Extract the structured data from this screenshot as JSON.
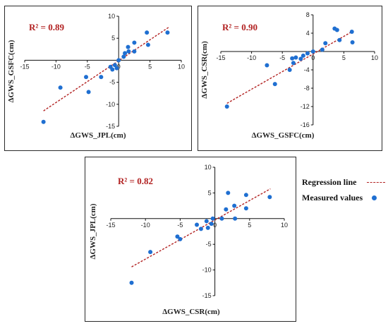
{
  "legend": {
    "regression_label": "Regression line",
    "measured_label": "Measured values"
  },
  "colors": {
    "points": "#1f6fd1",
    "regression": "#b22222",
    "r2_text": "#b22222",
    "axis": "#111111"
  },
  "chart_data": [
    {
      "type": "scatter",
      "title": "",
      "r2_label": "R² = 0.89",
      "xlabel": "ΔGWS_JPL(cm)",
      "ylabel": "ΔGWS_GSFC(cm)",
      "xlim": [
        -15,
        10
      ],
      "ylim": [
        -15,
        10
      ],
      "xticks": [
        -15,
        -10,
        -5,
        0,
        5,
        10
      ],
      "yticks": [
        -15,
        -10,
        -5,
        0,
        5,
        10
      ],
      "regression": {
        "x": [
          -12,
          8
        ],
        "y": [
          -11.5,
          7.5
        ]
      },
      "points": [
        {
          "x": -12.0,
          "y": -14.0
        },
        {
          "x": -9.3,
          "y": -6.2
        },
        {
          "x": -5.2,
          "y": -3.8
        },
        {
          "x": -4.8,
          "y": -7.2
        },
        {
          "x": -2.8,
          "y": -3.8
        },
        {
          "x": -1.3,
          "y": -1.5
        },
        {
          "x": -1.0,
          "y": -2.1
        },
        {
          "x": -0.6,
          "y": -1.1
        },
        {
          "x": -0.3,
          "y": -1.8
        },
        {
          "x": 0.0,
          "y": 0.0
        },
        {
          "x": 0.8,
          "y": 0.8
        },
        {
          "x": 1.0,
          "y": 1.6
        },
        {
          "x": 1.5,
          "y": 3.0
        },
        {
          "x": 1.6,
          "y": 2.0
        },
        {
          "x": 2.5,
          "y": 4.0
        },
        {
          "x": 2.5,
          "y": 2.0
        },
        {
          "x": 4.5,
          "y": 6.3
        },
        {
          "x": 4.7,
          "y": 3.5
        },
        {
          "x": 7.8,
          "y": 6.3
        }
      ]
    },
    {
      "type": "scatter",
      "title": "",
      "r2_label": "R² = 0.90",
      "xlabel": "ΔGWS_GSFC(cm)",
      "ylabel": "ΔGWS_CSR(cm)",
      "xlim": [
        -15,
        10
      ],
      "ylim": [
        -16,
        8
      ],
      "xticks": [
        -15,
        -10,
        -5,
        0,
        5,
        10
      ],
      "yticks": [
        -16,
        -12,
        -8,
        -4,
        0,
        4,
        8
      ],
      "regression": {
        "x": [
          -14,
          6.3
        ],
        "y": [
          -11.3,
          4.3
        ]
      },
      "points": [
        {
          "x": -14.0,
          "y": -12.0
        },
        {
          "x": -7.5,
          "y": -3.0
        },
        {
          "x": -6.2,
          "y": -7.1
        },
        {
          "x": -3.8,
          "y": -4.0
        },
        {
          "x": -3.4,
          "y": -1.5
        },
        {
          "x": -3.2,
          "y": -2.5
        },
        {
          "x": -2.8,
          "y": -1.3
        },
        {
          "x": -2.0,
          "y": -1.6
        },
        {
          "x": -1.6,
          "y": -0.9
        },
        {
          "x": -0.9,
          "y": -0.4
        },
        {
          "x": 0.0,
          "y": 0.0
        },
        {
          "x": 1.5,
          "y": 0.4
        },
        {
          "x": 2.0,
          "y": 1.8
        },
        {
          "x": 3.5,
          "y": 5.0
        },
        {
          "x": 3.9,
          "y": 4.7
        },
        {
          "x": 4.3,
          "y": 2.5
        },
        {
          "x": 6.3,
          "y": 4.3
        },
        {
          "x": 6.4,
          "y": 2.0
        }
      ]
    },
    {
      "type": "scatter",
      "title": "",
      "r2_label": "R² = 0.82",
      "xlabel": "ΔGWS_CSR(cm)",
      "ylabel": "ΔGWS_JPL(cm)",
      "xlim": [
        -15,
        10
      ],
      "ylim": [
        -15,
        10
      ],
      "xticks": [
        -15,
        -10,
        -5,
        0,
        5,
        10
      ],
      "yticks": [
        -15,
        -10,
        -5,
        0,
        5,
        10
      ],
      "regression": {
        "x": [
          -12,
          8
        ],
        "y": [
          -9.4,
          5.8
        ]
      },
      "points": [
        {
          "x": -12.0,
          "y": -12.5
        },
        {
          "x": -9.3,
          "y": -6.5
        },
        {
          "x": -5.4,
          "y": -3.5
        },
        {
          "x": -5.0,
          "y": -4.0
        },
        {
          "x": -2.6,
          "y": -1.2
        },
        {
          "x": -2.0,
          "y": -2.0
        },
        {
          "x": -1.2,
          "y": -0.5
        },
        {
          "x": -1.0,
          "y": -1.8
        },
        {
          "x": -0.5,
          "y": -1.0
        },
        {
          "x": -0.3,
          "y": 0.0
        },
        {
          "x": 1.0,
          "y": 0.0
        },
        {
          "x": 1.6,
          "y": 1.8
        },
        {
          "x": 1.9,
          "y": 5.0
        },
        {
          "x": 2.8,
          "y": 2.5
        },
        {
          "x": 2.9,
          "y": 0.0
        },
        {
          "x": 4.5,
          "y": 4.6
        },
        {
          "x": 4.5,
          "y": 2.0
        },
        {
          "x": 7.9,
          "y": 4.2
        }
      ]
    }
  ]
}
